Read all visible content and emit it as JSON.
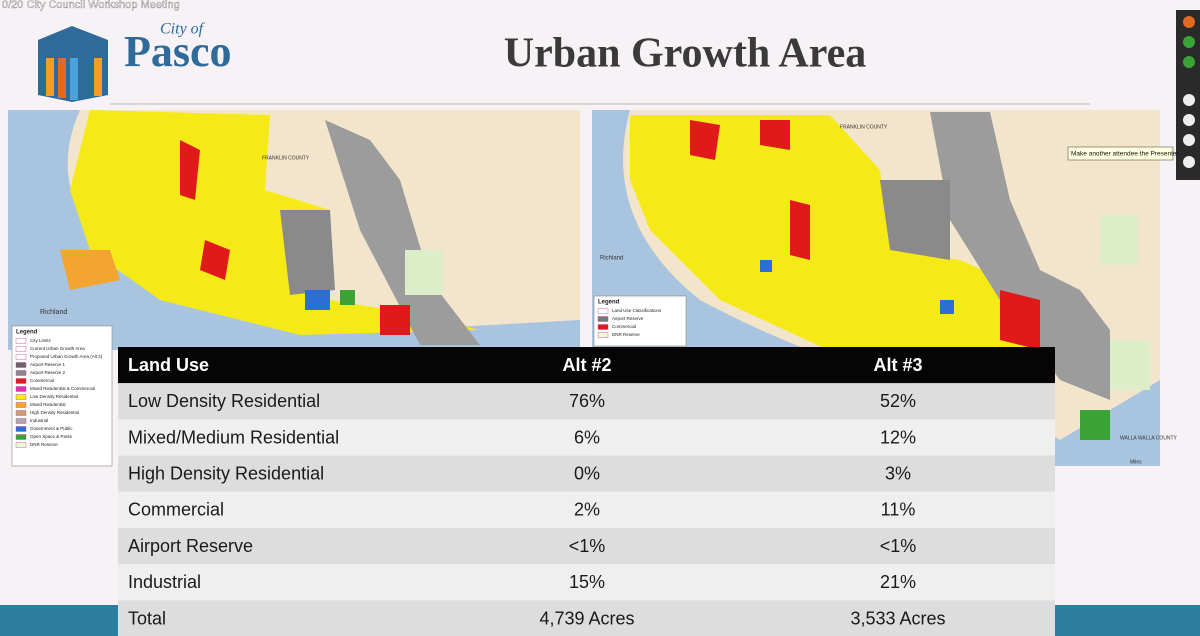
{
  "meeting_title": "0/20 City Council Workshop Meeting",
  "logo": {
    "line1": "City of",
    "line2": "Pasco"
  },
  "header": {
    "title": "Urban Growth Area"
  },
  "maps": [
    {
      "labels": [
        "Richland",
        "FRANKLIN COUNTY"
      ],
      "legend": {
        "title": "Legend",
        "items": [
          "City Limits",
          "Current Urban Growth Area",
          "Proposed Urban Growth Area (Alt 2)",
          "Airport Reserve 1",
          "Airport Reserve 2",
          "Commercial",
          "Mixed Residential & Commercial",
          "Low Density Residential",
          "Mixed Residential",
          "High Density Residential",
          "Industrial",
          "Government & Public",
          "Open Space & Parks",
          "DNR Reserve"
        ]
      }
    },
    {
      "labels": [
        "Richland",
        "FRANKLIN COUNTY",
        "WALLA WALLA COUNTY",
        "Miles"
      ],
      "legend": {
        "title": "Legend",
        "items": [
          "Land Use Classifications",
          "Airport Reserve",
          "Commercial",
          "DNR Reserve"
        ]
      }
    }
  ],
  "table": {
    "columns": [
      "Land Use",
      "Alt #2",
      "Alt #3"
    ],
    "rows": [
      [
        "Low Density Residential",
        "76%",
        "52%"
      ],
      [
        "Mixed/Medium Residential",
        "6%",
        "12%"
      ],
      [
        "High Density Residential",
        "0%",
        "3%"
      ],
      [
        "Commercial",
        "2%",
        "11%"
      ],
      [
        "Airport Reserve",
        "<1%",
        "<1%"
      ],
      [
        "Industrial",
        "15%",
        "21%"
      ],
      [
        "Total",
        "4,739 Acres",
        "3,533 Acres"
      ]
    ]
  },
  "toolbar": {
    "tooltip": "Make another attendee the Presenter"
  }
}
